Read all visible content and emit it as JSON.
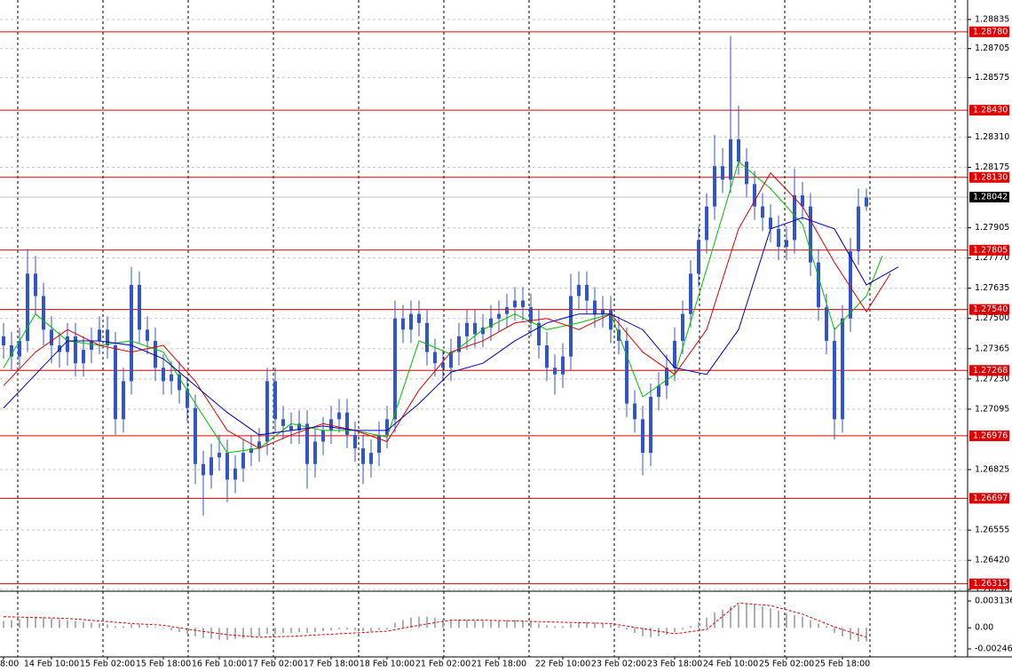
{
  "chart_data": {
    "type": "candlestick",
    "candle_color": "#3355cc",
    "grid": true,
    "categories": [
      "8:00",
      null,
      null,
      null,
      null,
      null,
      "14 Feb 10:00",
      null,
      null,
      null,
      null,
      null,
      null,
      "15 Feb 02:00",
      null,
      null,
      null,
      null,
      null,
      null,
      "15 Feb 18:00",
      null,
      null,
      null,
      null,
      null,
      null,
      "16 Feb 10:00",
      null,
      null,
      null,
      null,
      null,
      null,
      "17 Feb 02:00",
      null,
      null,
      null,
      null,
      null,
      null,
      "17 Feb 18:00",
      null,
      null,
      null,
      null,
      null,
      null,
      "18 Feb 10:00",
      null,
      null,
      null,
      null,
      null,
      null,
      "21 Feb 02:00",
      null,
      null,
      null,
      null,
      null,
      null,
      "21 Feb 18:00",
      null,
      null,
      null,
      null,
      null,
      null,
      null,
      "22 Feb 10:00",
      null,
      null,
      null,
      null,
      null,
      null,
      "23 Feb 02:00",
      null,
      null,
      null,
      null,
      null,
      null,
      "23 Feb 18:00",
      null,
      null,
      null,
      null,
      null,
      null,
      "24 Feb 10:00",
      null,
      null,
      null,
      null,
      null,
      null,
      "25 Feb 02:00",
      null,
      null,
      null,
      null,
      null,
      null,
      "25 Feb 18:00",
      null,
      null,
      null
    ],
    "candles": [
      [
        1.2742,
        1.2748,
        1.2732,
        1.2738
      ],
      [
        1.2738,
        1.2744,
        1.2727,
        1.2733
      ],
      [
        1.2733,
        1.2746,
        1.2728,
        1.274
      ],
      [
        1.274,
        1.2781,
        1.2735,
        1.277
      ],
      [
        1.277,
        1.2778,
        1.2752,
        1.276
      ],
      [
        1.276,
        1.2766,
        1.2738,
        1.2745
      ],
      [
        1.2745,
        1.2751,
        1.273,
        1.2738
      ],
      [
        1.2738,
        1.2744,
        1.2728,
        1.2735
      ],
      [
        1.2735,
        1.2748,
        1.2729,
        1.2742
      ],
      [
        1.2742,
        1.2748,
        1.2724,
        1.273
      ],
      [
        1.273,
        1.2742,
        1.2724,
        1.2736
      ],
      [
        1.2736,
        1.2746,
        1.273,
        1.274
      ],
      [
        1.274,
        1.2751,
        1.2734,
        1.2745
      ],
      [
        1.2745,
        1.2751,
        1.2732,
        1.2738
      ],
      [
        1.2738,
        1.2744,
        1.2698,
        1.2705
      ],
      [
        1.2705,
        1.2728,
        1.2699,
        1.2722
      ],
      [
        1.2722,
        1.2773,
        1.2716,
        1.2765
      ],
      [
        1.2765,
        1.2771,
        1.2739,
        1.2745
      ],
      [
        1.2745,
        1.2751,
        1.2734,
        1.274
      ],
      [
        1.274,
        1.2746,
        1.2722,
        1.2728
      ],
      [
        1.2728,
        1.2734,
        1.2716,
        1.2722
      ],
      [
        1.2722,
        1.2731,
        1.2716,
        1.2725
      ],
      [
        1.2725,
        1.2731,
        1.2712,
        1.2718
      ],
      [
        1.2718,
        1.2724,
        1.2704,
        1.271
      ],
      [
        1.271,
        1.2716,
        1.2676,
        1.2685
      ],
      [
        1.2685,
        1.2691,
        1.2662,
        1.268
      ],
      [
        1.268,
        1.2694,
        1.2674,
        1.2688
      ],
      [
        1.2688,
        1.2698,
        1.2682,
        1.269
      ],
      [
        1.269,
        1.2696,
        1.2668,
        1.2678
      ],
      [
        1.2678,
        1.2689,
        1.2672,
        1.2683
      ],
      [
        1.2683,
        1.2696,
        1.2677,
        1.269
      ],
      [
        1.269,
        1.2698,
        1.2684,
        1.2692
      ],
      [
        1.2692,
        1.2701,
        1.2686,
        1.2695
      ],
      [
        1.2695,
        1.2728,
        1.2689,
        1.2722
      ],
      [
        1.2722,
        1.2728,
        1.2699,
        1.2705
      ],
      [
        1.2705,
        1.2711,
        1.2696,
        1.2702
      ],
      [
        1.2702,
        1.2708,
        1.2694,
        1.27
      ],
      [
        1.27,
        1.2709,
        1.2694,
        1.2703
      ],
      [
        1.2703,
        1.2709,
        1.2674,
        1.2685
      ],
      [
        1.2685,
        1.2701,
        1.2679,
        1.2695
      ],
      [
        1.2695,
        1.2706,
        1.2689,
        1.27
      ],
      [
        1.27,
        1.2711,
        1.2694,
        1.2705
      ],
      [
        1.2705,
        1.2714,
        1.2699,
        1.2708
      ],
      [
        1.2708,
        1.2714,
        1.2692,
        1.2698
      ],
      [
        1.2698,
        1.2704,
        1.2686,
        1.2692
      ],
      [
        1.2692,
        1.2698,
        1.2676,
        1.2685
      ],
      [
        1.2685,
        1.2696,
        1.2679,
        1.269
      ],
      [
        1.269,
        1.2704,
        1.2684,
        1.2698
      ],
      [
        1.2698,
        1.2711,
        1.2692,
        1.2705
      ],
      [
        1.2705,
        1.2758,
        1.2699,
        1.275
      ],
      [
        1.275,
        1.2756,
        1.2739,
        1.2745
      ],
      [
        1.2745,
        1.2758,
        1.2739,
        1.2752
      ],
      [
        1.2752,
        1.2758,
        1.2742,
        1.2748
      ],
      [
        1.2748,
        1.2754,
        1.2729,
        1.2735
      ],
      [
        1.2735,
        1.2741,
        1.2724,
        1.273
      ],
      [
        1.273,
        1.2736,
        1.2722,
        1.2728
      ],
      [
        1.2728,
        1.2741,
        1.2722,
        1.2735
      ],
      [
        1.2735,
        1.2748,
        1.2729,
        1.2742
      ],
      [
        1.2742,
        1.2754,
        1.2736,
        1.2748
      ],
      [
        1.2748,
        1.2754,
        1.2737,
        1.2743
      ],
      [
        1.2743,
        1.2752,
        1.2737,
        1.2746
      ],
      [
        1.2746,
        1.2756,
        1.274,
        1.275
      ],
      [
        1.275,
        1.2758,
        1.2744,
        1.2752
      ],
      [
        1.2752,
        1.2761,
        1.2746,
        1.2755
      ],
      [
        1.2755,
        1.2764,
        1.2749,
        1.2758
      ],
      [
        1.2758,
        1.2764,
        1.2749,
        1.2755
      ],
      [
        1.2755,
        1.2761,
        1.2742,
        1.2748
      ],
      [
        1.2748,
        1.2754,
        1.2732,
        1.2738
      ],
      [
        1.2738,
        1.2744,
        1.2722,
        1.2728
      ],
      [
        1.2728,
        1.2734,
        1.2716,
        1.2725
      ],
      [
        1.2725,
        1.2739,
        1.2719,
        1.2733
      ],
      [
        1.2733,
        1.277,
        1.2727,
        1.276
      ],
      [
        1.276,
        1.2771,
        1.2754,
        1.2765
      ],
      [
        1.2765,
        1.2771,
        1.2752,
        1.2758
      ],
      [
        1.2758,
        1.2764,
        1.2746,
        1.2752
      ],
      [
        1.2752,
        1.276,
        1.2746,
        1.2754
      ],
      [
        1.2754,
        1.276,
        1.2739,
        1.2745
      ],
      [
        1.2745,
        1.2751,
        1.2734,
        1.274
      ],
      [
        1.274,
        1.2746,
        1.2706,
        1.2712
      ],
      [
        1.2712,
        1.2718,
        1.2699,
        1.2705
      ],
      [
        1.2705,
        1.2711,
        1.268,
        1.269
      ],
      [
        1.269,
        1.2721,
        1.2684,
        1.2715
      ],
      [
        1.2715,
        1.2726,
        1.2709,
        1.272
      ],
      [
        1.272,
        1.2734,
        1.2714,
        1.2728
      ],
      [
        1.2728,
        1.2746,
        1.2722,
        1.274
      ],
      [
        1.274,
        1.2758,
        1.2734,
        1.2752
      ],
      [
        1.2752,
        1.2776,
        1.2746,
        1.277
      ],
      [
        1.277,
        1.2791,
        1.2764,
        1.2785
      ],
      [
        1.2785,
        1.2806,
        1.2779,
        1.28
      ],
      [
        1.28,
        1.2832,
        1.2794,
        1.2818
      ],
      [
        1.2818,
        1.2826,
        1.2806,
        1.2812
      ],
      [
        1.2812,
        1.2876,
        1.2806,
        1.283
      ],
      [
        1.283,
        1.2845,
        1.2814,
        1.282
      ],
      [
        1.282,
        1.2826,
        1.2804,
        1.281
      ],
      [
        1.281,
        1.2816,
        1.2794,
        1.28
      ],
      [
        1.28,
        1.2806,
        1.2789,
        1.2795
      ],
      [
        1.2795,
        1.2801,
        1.2784,
        1.279
      ],
      [
        1.279,
        1.2796,
        1.2776,
        1.2782
      ],
      [
        1.2782,
        1.2791,
        1.2776,
        1.2785
      ],
      [
        1.2785,
        1.2817,
        1.2779,
        1.2805
      ],
      [
        1.2805,
        1.2811,
        1.2794,
        1.28
      ],
      [
        1.28,
        1.2806,
        1.2769,
        1.2775
      ],
      [
        1.2775,
        1.2781,
        1.2749,
        1.2755
      ],
      [
        1.2755,
        1.2761,
        1.2734,
        1.274
      ],
      [
        1.274,
        1.2746,
        1.2696,
        1.2705
      ],
      [
        1.2705,
        1.2756,
        1.2699,
        1.275
      ],
      [
        1.275,
        1.2786,
        1.2744,
        1.278
      ],
      [
        1.278,
        1.2808,
        1.2774,
        1.28
      ],
      [
        1.28,
        1.2808,
        1.2798,
        1.2804
      ]
    ],
    "ylim": [
      1.26286,
      1.28922
    ],
    "yticks": [
      1.28835,
      1.28705,
      1.28575,
      {
        "value": 1.2831,
        "label": "1.28310"
      },
      1.28175,
      1.27905,
      {
        "value": 1.2777,
        "label": "1.27770"
      },
      1.27635,
      {
        "value": 1.275,
        "label": "1.27500"
      },
      1.27365,
      {
        "value": 1.2723,
        "label": "1.27230"
      },
      1.27095,
      1.26825,
      1.26555,
      {
        "value": 1.2642,
        "label": "1.26420"
      },
      {
        "value": 1.2629,
        "label": "1.26290"
      }
    ],
    "levels": [
      {
        "value": 1.2878,
        "label": "1.28780"
      },
      {
        "value": 1.2843,
        "label": "1.28430"
      },
      {
        "value": 1.2813,
        "label": "1.28130"
      },
      1.27805,
      {
        "value": 1.2754,
        "label": "1.27540"
      },
      1.27268,
      1.26976,
      1.26697,
      1.26315
    ],
    "level_color": "#e00000",
    "current_price": 1.28042,
    "series": [
      {
        "color": "#00c000",
        "x": [
          0,
          4,
          8,
          12,
          16,
          20,
          24,
          28,
          32,
          36,
          40,
          44,
          48,
          52,
          56,
          60,
          64,
          68,
          72,
          76,
          80,
          84,
          88,
          92,
          96,
          100,
          104,
          108,
          110
        ],
        "values": [
          1.2728,
          1.2752,
          1.274,
          1.2738,
          1.274,
          1.2735,
          1.2712,
          1.269,
          1.2692,
          1.2703,
          1.27,
          1.27,
          1.2697,
          1.274,
          1.2734,
          1.2745,
          1.2752,
          1.2745,
          1.2748,
          1.2752,
          1.2715,
          1.2725,
          1.2772,
          1.282,
          1.2808,
          1.2792,
          1.2745,
          1.276,
          1.2778
        ]
      },
      {
        "color": "#e00000",
        "x": [
          0,
          4,
          8,
          12,
          16,
          20,
          24,
          28,
          32,
          36,
          40,
          44,
          48,
          52,
          56,
          60,
          64,
          68,
          72,
          76,
          80,
          84,
          88,
          92,
          96,
          100,
          104,
          108,
          111
        ],
        "values": [
          1.272,
          1.2735,
          1.2745,
          1.2738,
          1.2735,
          1.2738,
          1.2722,
          1.27,
          1.2692,
          1.2698,
          1.2703,
          1.27,
          1.2695,
          1.2718,
          1.2735,
          1.274,
          1.2748,
          1.275,
          1.2745,
          1.2752,
          1.2735,
          1.2725,
          1.2745,
          1.279,
          1.2815,
          1.28,
          1.2775,
          1.2753,
          1.277
        ]
      },
      {
        "color": "#0000c0",
        "x": [
          0,
          4,
          8,
          12,
          16,
          20,
          24,
          28,
          32,
          36,
          40,
          44,
          48,
          52,
          56,
          60,
          64,
          68,
          72,
          76,
          80,
          84,
          88,
          92,
          96,
          100,
          104,
          108,
          112
        ],
        "values": [
          1.271,
          1.2725,
          1.274,
          1.274,
          1.2738,
          1.2732,
          1.272,
          1.2708,
          1.2698,
          1.27,
          1.2702,
          1.27,
          1.27,
          1.2712,
          1.2726,
          1.273,
          1.274,
          1.2748,
          1.2752,
          1.2752,
          1.2745,
          1.2728,
          1.2725,
          1.2745,
          1.279,
          1.2795,
          1.279,
          1.2765,
          1.2773
        ]
      }
    ],
    "oscillator": {
      "ylim": [
        -0.003402,
        0.004174
      ],
      "yticks": [
        0.003136,
        {
          "value": 0,
          "label": "0.00"
        },
        -0.002468
      ],
      "histogram_color": "#b0b0b0",
      "histogram": [
        0.0008,
        0.0009,
        0.001,
        0.0012,
        0.0013,
        0.0012,
        0.0011,
        0.001,
        0.0009,
        0.0008,
        0.0007,
        0.0006,
        0.0005,
        0.0004,
        0.0002,
        0.0002,
        0.0004,
        0.0004,
        0.0003,
        0.0001,
        -0.0001,
        -0.0003,
        -0.0005,
        -0.0007,
        -0.001,
        -0.0012,
        -0.0013,
        -0.0014,
        -0.0014,
        -0.0013,
        -0.0012,
        -0.0011,
        -0.001,
        -0.0007,
        -0.0007,
        -0.0006,
        -0.0006,
        -0.0005,
        -0.0006,
        -0.0005,
        -0.0004,
        -0.0003,
        -0.0002,
        -0.0002,
        -0.0003,
        -0.0004,
        -0.0004,
        -0.0003,
        -0.0002,
        0.0006,
        0.0009,
        0.0012,
        0.0013,
        0.0013,
        0.0012,
        0.001,
        0.0009,
        0.0009,
        0.0009,
        0.0008,
        0.0008,
        0.0008,
        0.0008,
        0.0009,
        0.0009,
        0.0008,
        0.0007,
        0.0005,
        0.0003,
        0.0002,
        0.0002,
        0.0005,
        0.0007,
        0.0007,
        0.0006,
        0.0005,
        0.0004,
        0.0002,
        -0.0002,
        -0.0006,
        -0.001,
        -0.0011,
        -0.001,
        -0.0008,
        -0.0005,
        -0.0002,
        0.0002,
        0.0007,
        0.0012,
        0.0018,
        0.0021,
        0.0025,
        0.0027,
        0.0028,
        0.0027,
        0.0025,
        0.0023,
        0.002,
        0.0017,
        0.0015,
        0.0013,
        0.0009,
        0.0005,
        0.0002,
        -0.0006,
        -0.001,
        -0.0014,
        -0.0016,
        -0.0016
      ],
      "signal": {
        "color": "#e00000",
        "x": [
          0,
          4,
          8,
          12,
          16,
          20,
          24,
          28,
          32,
          36,
          40,
          44,
          48,
          52,
          56,
          60,
          64,
          68,
          72,
          76,
          80,
          84,
          88,
          92,
          96,
          100,
          104,
          108
        ],
        "values": [
          0.0013,
          0.0012,
          0.0011,
          0.0008,
          0.0005,
          0.0003,
          -0.0003,
          -0.0008,
          -0.0011,
          -0.001,
          -0.0008,
          -0.0006,
          -0.0004,
          0.0003,
          0.0009,
          0.0009,
          0.0008,
          0.0007,
          0.0006,
          0.0005,
          -0.0001,
          -0.0007,
          -0.0002,
          0.0029,
          0.0026,
          0.0016,
          0.0001,
          -0.0011
        ]
      }
    }
  }
}
